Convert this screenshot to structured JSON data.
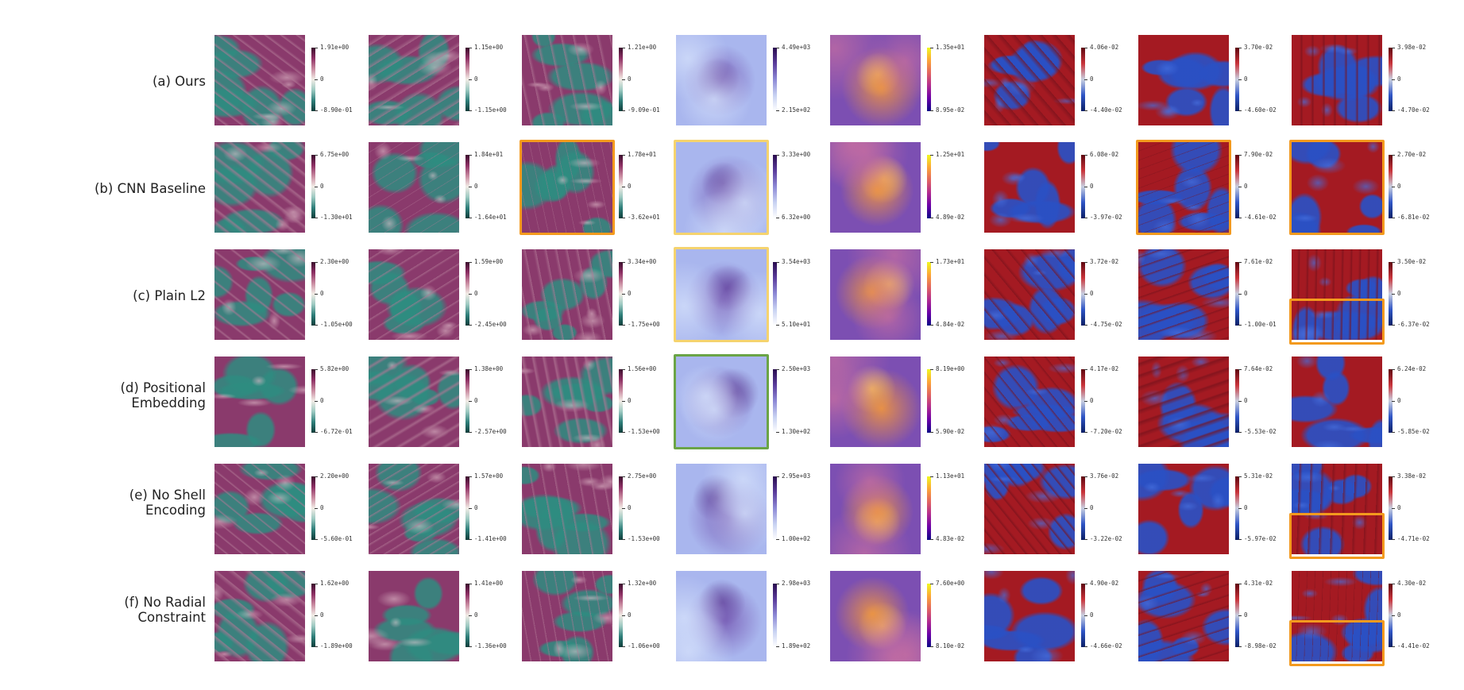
{
  "colors": {
    "highlight_orange": "#f39a1e",
    "highlight_yellow": "#f5d36e",
    "highlight_green": "#6aa446"
  },
  "columns": [
    {
      "cmap": "curl"
    },
    {
      "cmap": "curl"
    },
    {
      "cmap": "curl"
    },
    {
      "cmap": "purple"
    },
    {
      "cmap": "plasma"
    },
    {
      "cmap": "bluered"
    },
    {
      "cmap": "bluered"
    },
    {
      "cmap": "bluered"
    }
  ],
  "rows": [
    {
      "label": "(a) Ours",
      "panels": [
        {
          "top": "1.91e+00",
          "mid": "0",
          "bot": "-8.90e-01"
        },
        {
          "top": "1.15e+00",
          "mid": "0",
          "bot": "-1.15e+00"
        },
        {
          "top": "1.21e+00",
          "mid": "0",
          "bot": "-9.09e-01"
        },
        {
          "top": "4.49e+03",
          "mid": "",
          "bot": "2.15e+02"
        },
        {
          "top": "1.35e+01",
          "mid": "",
          "bot": "8.95e-02"
        },
        {
          "top": "4.06e-02",
          "mid": "0",
          "bot": "-4.40e-02"
        },
        {
          "top": "3.70e-02",
          "mid": "0",
          "bot": "-4.60e-02"
        },
        {
          "top": "3.98e-02",
          "mid": "0",
          "bot": "-4.70e-02"
        }
      ]
    },
    {
      "label": "(b) CNN Baseline",
      "panels": [
        {
          "top": "6.75e+00",
          "mid": "0",
          "bot": "-1.30e+01"
        },
        {
          "top": "1.84e+01",
          "mid": "0",
          "bot": "-1.64e+01"
        },
        {
          "top": "1.78e+01",
          "mid": "0",
          "bot": "-3.62e+01",
          "highlight": "orange"
        },
        {
          "top": "3.33e+00",
          "mid": "",
          "bot": "6.32e+00",
          "highlight": "yellow"
        },
        {
          "top": "1.25e+01",
          "mid": "",
          "bot": "4.89e-02"
        },
        {
          "top": "6.08e-02",
          "mid": "0",
          "bot": "-3.97e-02"
        },
        {
          "top": "7.90e-02",
          "mid": "0",
          "bot": "-4.61e-02",
          "highlight": "orange"
        },
        {
          "top": "2.70e-02",
          "mid": "0",
          "bot": "-6.81e-02",
          "highlight": "orange"
        }
      ]
    },
    {
      "label": "(c) Plain L2",
      "panels": [
        {
          "top": "2.30e+00",
          "mid": "0",
          "bot": "-1.05e+00"
        },
        {
          "top": "1.59e+00",
          "mid": "0",
          "bot": "-2.45e+00"
        },
        {
          "top": "3.34e+00",
          "mid": "0",
          "bot": "-1.75e+00"
        },
        {
          "top": "3.54e+03",
          "mid": "",
          "bot": "5.10e+01",
          "highlight": "yellow"
        },
        {
          "top": "1.73e+01",
          "mid": "",
          "bot": "4.84e-02"
        },
        {
          "top": "3.72e-02",
          "mid": "0",
          "bot": "-4.75e-02"
        },
        {
          "top": "7.61e-02",
          "mid": "0",
          "bot": "-1.00e-01"
        },
        {
          "top": "3.50e-02",
          "mid": "0",
          "bot": "-6.37e-02",
          "highlight": "orange-bottom"
        }
      ]
    },
    {
      "label": "(d) Positional\nEmbedding",
      "panels": [
        {
          "top": "5.82e+00",
          "mid": "0",
          "bot": "-6.72e-01"
        },
        {
          "top": "1.38e+00",
          "mid": "0",
          "bot": "-2.57e+00"
        },
        {
          "top": "1.56e+00",
          "mid": "0",
          "bot": "-1.53e+00"
        },
        {
          "top": "2.50e+03",
          "mid": "",
          "bot": "1.30e+02",
          "highlight": "green"
        },
        {
          "top": "8.19e+00",
          "mid": "",
          "bot": "5.90e-02"
        },
        {
          "top": "4.17e-02",
          "mid": "0",
          "bot": "-7.20e-02"
        },
        {
          "top": "7.64e-02",
          "mid": "0",
          "bot": "-5.53e-02"
        },
        {
          "top": "6.24e-02",
          "mid": "0",
          "bot": "-5.85e-02"
        }
      ]
    },
    {
      "label": "(e) No Shell\nEncoding",
      "panels": [
        {
          "top": "2.20e+00",
          "mid": "0",
          "bot": "-5.60e-01"
        },
        {
          "top": "1.57e+00",
          "mid": "0",
          "bot": "-1.41e+00"
        },
        {
          "top": "2.75e+00",
          "mid": "0",
          "bot": "-1.53e+00"
        },
        {
          "top": "2.95e+03",
          "mid": "",
          "bot": "1.00e+02"
        },
        {
          "top": "1.13e+01",
          "mid": "",
          "bot": "4.83e-02"
        },
        {
          "top": "3.76e-02",
          "mid": "0",
          "bot": "-3.22e-02"
        },
        {
          "top": "5.31e-02",
          "mid": "0",
          "bot": "-5.97e-02"
        },
        {
          "top": "3.38e-02",
          "mid": "0",
          "bot": "-4.71e-02",
          "highlight": "orange-bottom"
        }
      ]
    },
    {
      "label": "(f) No Radial\nConstraint",
      "panels": [
        {
          "top": "1.62e+00",
          "mid": "0",
          "bot": "-1.89e+00"
        },
        {
          "top": "1.41e+00",
          "mid": "0",
          "bot": "-1.36e+00"
        },
        {
          "top": "1.32e+00",
          "mid": "0",
          "bot": "-1.06e+00"
        },
        {
          "top": "2.98e+03",
          "mid": "",
          "bot": "1.89e+02"
        },
        {
          "top": "7.60e+00",
          "mid": "",
          "bot": "8.10e-02"
        },
        {
          "top": "4.90e-02",
          "mid": "0",
          "bot": "-4.66e-02"
        },
        {
          "top": "4.31e-02",
          "mid": "0",
          "bot": "-8.98e-02"
        },
        {
          "top": "4.30e-02",
          "mid": "0",
          "bot": "-4.41e-02",
          "highlight": "orange-bottom"
        }
      ]
    }
  ]
}
